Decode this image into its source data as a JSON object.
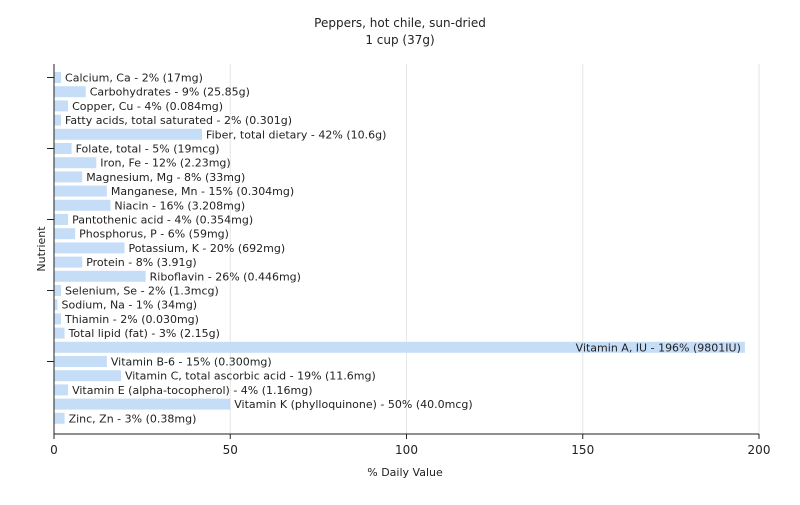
{
  "chart_data": {
    "type": "bar",
    "orientation": "horizontal",
    "title": "Peppers, hot chile, sun-dried",
    "subtitle": "1 cup (37g)",
    "xlabel": "% Daily Value",
    "ylabel": "Nutrient",
    "xlim": [
      0,
      200
    ],
    "xticks": [
      0,
      50,
      100,
      150,
      200
    ],
    "grid": true,
    "bar_color": "#c6ddf7",
    "categories": [
      "Calcium, Ca",
      "Carbohydrates",
      "Copper, Cu",
      "Fatty acids, total saturated",
      "Fiber, total dietary",
      "Folate, total",
      "Iron, Fe",
      "Magnesium, Mg",
      "Manganese, Mn",
      "Niacin",
      "Pantothenic acid",
      "Phosphorus, P",
      "Potassium, K",
      "Protein",
      "Riboflavin",
      "Selenium, Se",
      "Sodium, Na",
      "Thiamin",
      "Total lipid (fat)",
      "Vitamin A, IU",
      "Vitamin B-6",
      "Vitamin C, total ascorbic acid",
      "Vitamin E (alpha-tocopherol)",
      "Vitamin K (phylloquinone)",
      "Zinc, Zn"
    ],
    "values": [
      2,
      9,
      4,
      2,
      42,
      5,
      12,
      8,
      15,
      16,
      4,
      6,
      20,
      8,
      26,
      2,
      1,
      2,
      3,
      196,
      15,
      19,
      4,
      50,
      3
    ],
    "labels": [
      "Calcium, Ca - 2% (17mg)",
      "Carbohydrates - 9% (25.85g)",
      "Copper, Cu - 4% (0.084mg)",
      "Fatty acids, total saturated - 2% (0.301g)",
      "Fiber, total dietary - 42% (10.6g)",
      "Folate, total - 5% (19mcg)",
      "Iron, Fe - 12% (2.23mg)",
      "Magnesium, Mg - 8% (33mg)",
      "Manganese, Mn - 15% (0.304mg)",
      "Niacin - 16% (3.208mg)",
      "Pantothenic acid - 4% (0.354mg)",
      "Phosphorus, P - 6% (59mg)",
      "Potassium, K - 20% (692mg)",
      "Protein - 8% (3.91g)",
      "Riboflavin - 26% (0.446mg)",
      "Selenium, Se - 2% (1.3mcg)",
      "Sodium, Na - 1% (34mg)",
      "Thiamin - 2% (0.030mg)",
      "Total lipid (fat) - 3% (2.15g)",
      "Vitamin A, IU - 196% (9801IU)",
      "Vitamin B-6 - 15% (0.300mg)",
      "Vitamin C, total ascorbic acid - 19% (11.6mg)",
      "Vitamin E (alpha-tocopherol) - 4% (1.16mg)",
      "Vitamin K (phylloquinone) - 50% (40.0mcg)",
      "Zinc, Zn - 3% (0.38mg)"
    ]
  }
}
